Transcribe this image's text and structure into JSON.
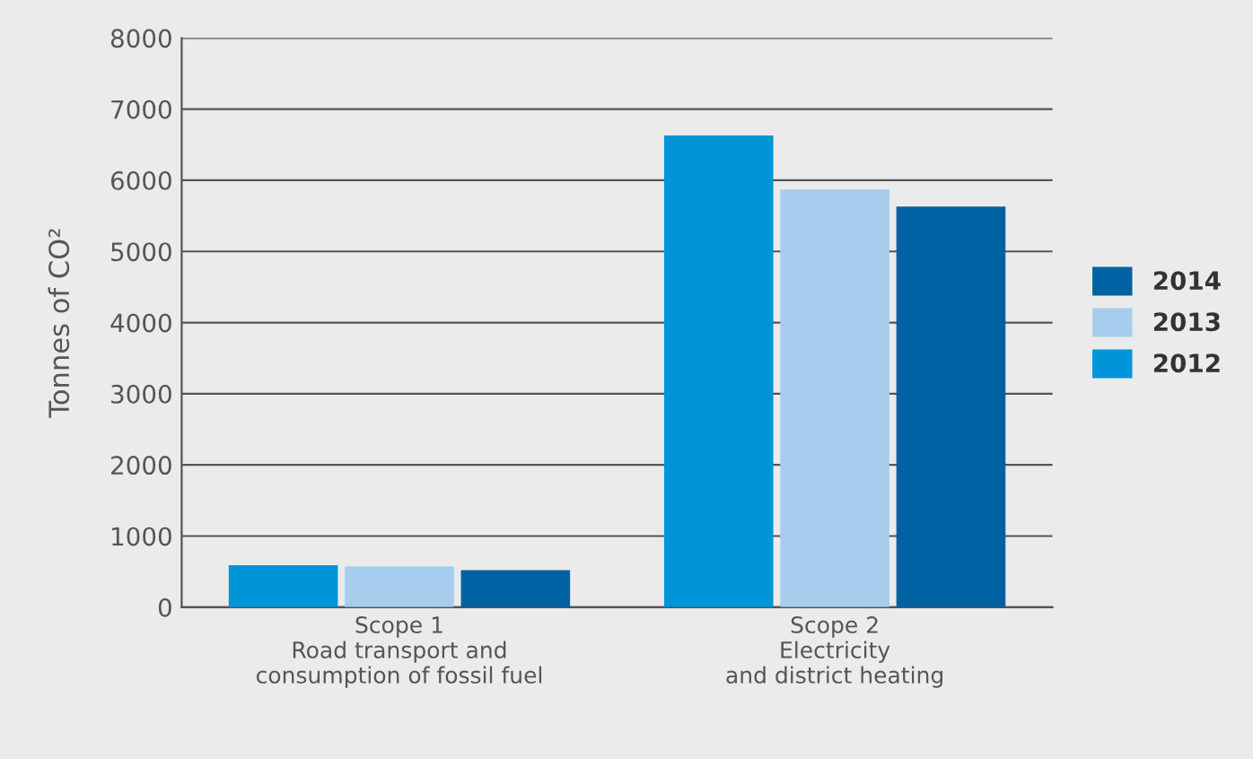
{
  "chart_data": {
    "type": "bar",
    "ylabel": "Tonnes of CO²",
    "categories": [
      "Scope 1\nRoad transport and\nconsumption of fossil fuel",
      "Scope 2\nElectricity\nand district heating"
    ],
    "series": [
      {
        "name": "2012",
        "color": "#0095d9",
        "values": [
          590,
          6630
        ]
      },
      {
        "name": "2013",
        "color": "#a6cdee",
        "values": [
          570,
          5870
        ]
      },
      {
        "name": "2014",
        "color": "#0062a3",
        "values": [
          520,
          5630
        ]
      }
    ],
    "ylim": [
      0,
      8000
    ],
    "yticks": [
      0,
      1000,
      2000,
      3000,
      4000,
      5000,
      6000,
      7000,
      8000
    ],
    "grid": "y",
    "legend": "right"
  }
}
